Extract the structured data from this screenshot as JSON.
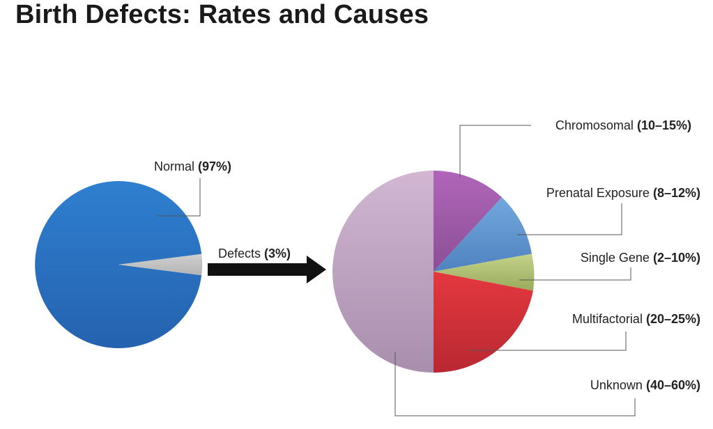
{
  "title": "Birth Defects: Rates and Causes",
  "chart_data": [
    {
      "type": "pie",
      "slices": [
        {
          "name": "Normal",
          "value_text": "(97%)",
          "value": 97,
          "color": "#2a70c0"
        },
        {
          "name": "Defects",
          "value_text": "(3%)",
          "value": 3,
          "color": "#c4c4c4"
        }
      ]
    },
    {
      "type": "pie",
      "slices": [
        {
          "name": "Chromosomal",
          "value_text": "(10–15%)",
          "value": 12.5,
          "color": "#9d5aa8"
        },
        {
          "name": "Prenatal Exposure",
          "value_text": "(8–12%)",
          "value": 10,
          "color": "#5f93cf"
        },
        {
          "name": "Single Gene",
          "value_text": "(2–10%)",
          "value": 6,
          "color": "#aab96a"
        },
        {
          "name": "Multifactorial",
          "value_text": "(20–25%)",
          "value": 22.5,
          "color": "#d3323b"
        },
        {
          "name": "Unknown",
          "value_text": "(40–60%)",
          "value": 50,
          "color": "#c3a6c6"
        }
      ]
    }
  ]
}
